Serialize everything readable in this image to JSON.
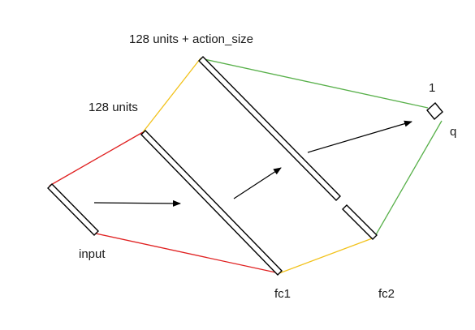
{
  "labels": {
    "top_layer": "128 units + action_size",
    "mid_layer": "128 units",
    "output_size": "1",
    "output_name": "q",
    "input": "input",
    "fc1": "fc1",
    "fc2": "fc2"
  },
  "colors": {
    "input_connection": "#e02020",
    "fc1_connection": "#f2c21b",
    "fc2_connection": "#58b04a",
    "outline": "#000000",
    "background": "#ffffff"
  }
}
